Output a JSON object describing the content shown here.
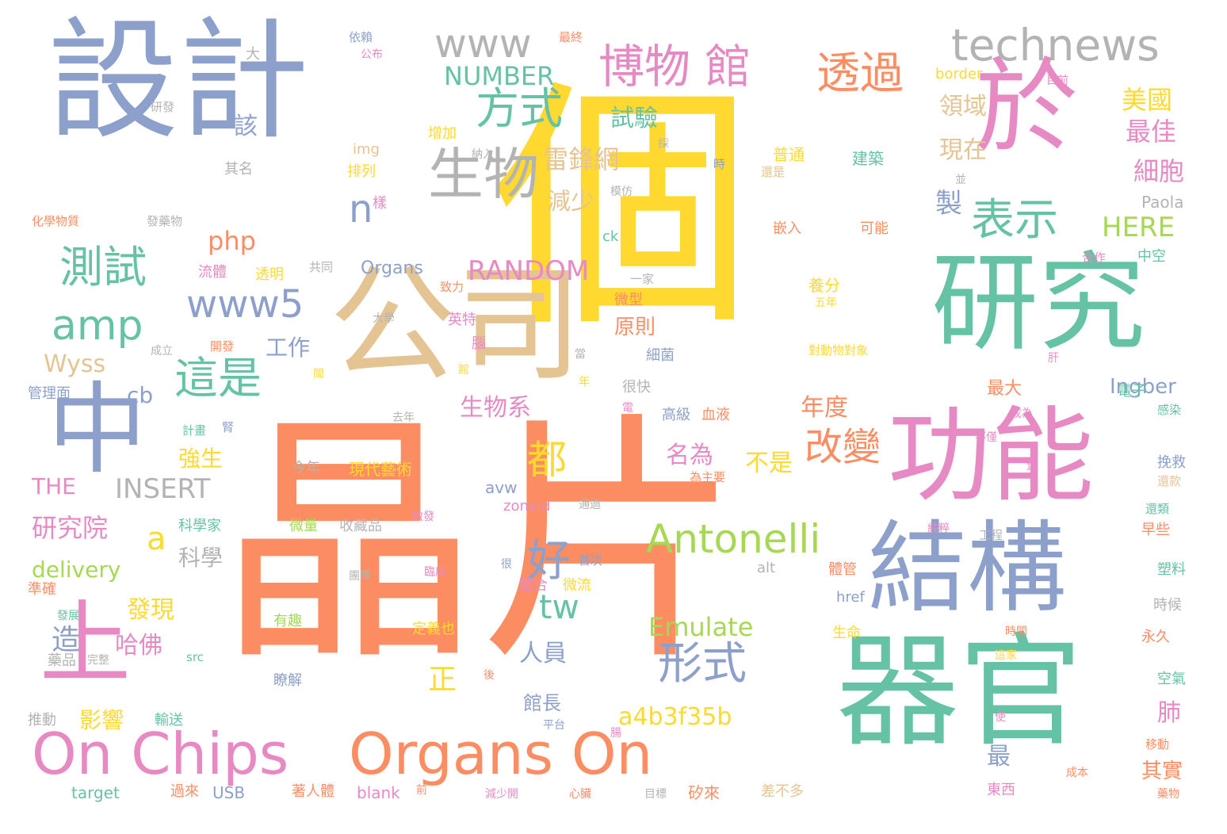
{
  "palette": {
    "blue": "#8DA0CB",
    "orange": "#FC8D62",
    "green": "#66C2A5",
    "yellow": "#FFD92F",
    "pink": "#E78AC3",
    "lime": "#A6D854",
    "tan": "#E5C494",
    "gray": "#B3B3B3"
  },
  "words": [
    {
      "text": "晶片",
      "color": "orange",
      "weight": 1.0
    },
    {
      "text": "個",
      "color": "yellow",
      "weight": 0.95
    },
    {
      "text": "設計",
      "color": "blue",
      "weight": 0.8
    },
    {
      "text": "公司",
      "color": "tan",
      "weight": 0.6
    },
    {
      "text": "器官",
      "color": "green",
      "weight": 0.6
    },
    {
      "text": "研究",
      "color": "green",
      "weight": 0.55
    },
    {
      "text": "功能",
      "color": "pink",
      "weight": 0.55
    },
    {
      "text": "於",
      "color": "pink",
      "weight": 0.5
    },
    {
      "text": "結構",
      "color": "blue",
      "weight": 0.5
    },
    {
      "text": "中",
      "color": "blue",
      "weight": 0.5
    },
    {
      "text": "上",
      "color": "pink",
      "weight": 0.45
    },
    {
      "text": "On Chips",
      "color": "pink",
      "weight": 0.4
    },
    {
      "text": "Organs On",
      "color": "orange",
      "weight": 0.4
    },
    {
      "text": "生物",
      "color": "gray",
      "weight": 0.3
    },
    {
      "text": "博物 館",
      "color": "pink",
      "weight": 0.3
    },
    {
      "text": "透過",
      "color": "orange",
      "weight": 0.3
    },
    {
      "text": "technews",
      "color": "gray",
      "weight": 0.3
    },
    {
      "text": "www",
      "color": "gray",
      "weight": 0.28
    },
    {
      "text": "方式",
      "color": "green",
      "weight": 0.28
    },
    {
      "text": "表示",
      "color": "green",
      "weight": 0.28
    },
    {
      "text": "測試",
      "color": "green",
      "weight": 0.28
    },
    {
      "text": "amp",
      "color": "green",
      "weight": 0.26
    },
    {
      "text": "www5",
      "color": "blue",
      "weight": 0.24
    },
    {
      "text": "這是",
      "color": "green",
      "weight": 0.26
    },
    {
      "text": "Antonelli",
      "color": "lime",
      "weight": 0.26
    },
    {
      "text": "形式",
      "color": "blue",
      "weight": 0.26
    },
    {
      "text": "好",
      "color": "blue",
      "weight": 0.26
    },
    {
      "text": "都",
      "color": "yellow",
      "weight": 0.24
    },
    {
      "text": "改變",
      "color": "orange",
      "weight": 0.22
    },
    {
      "text": "tw",
      "color": "green",
      "weight": 0.2
    },
    {
      "text": "a",
      "color": "yellow",
      "weight": 0.2
    },
    {
      "text": "雷鋒網",
      "color": "tan",
      "weight": 0.16
    },
    {
      "text": "減少",
      "color": "tan",
      "weight": 0.16
    },
    {
      "text": "試驗",
      "color": "green",
      "weight": 0.16
    },
    {
      "text": "NUMBER",
      "color": "green",
      "weight": 0.16
    },
    {
      "text": "RANDOM",
      "color": "pink",
      "weight": 0.18
    },
    {
      "text": "Emulate",
      "color": "lime",
      "weight": 0.18
    },
    {
      "text": "a4b3f35b",
      "color": "yellow",
      "weight": 0.18
    },
    {
      "text": "INSERT",
      "color": "gray",
      "weight": 0.18
    },
    {
      "text": "研究院",
      "color": "pink",
      "weight": 0.16
    },
    {
      "text": "科學",
      "color": "gray",
      "weight": 0.16
    },
    {
      "text": "delivery",
      "color": "lime",
      "weight": 0.16
    },
    {
      "text": "Wyss",
      "color": "tan",
      "weight": 0.16
    },
    {
      "text": "發現",
      "color": "yellow",
      "weight": 0.16
    },
    {
      "text": "哈佛",
      "color": "pink",
      "weight": 0.16
    },
    {
      "text": "人員",
      "color": "blue",
      "weight": 0.16
    },
    {
      "text": "名為",
      "color": "pink",
      "weight": 0.16
    },
    {
      "text": "不是",
      "color": "yellow",
      "weight": 0.16
    },
    {
      "text": "生物系",
      "color": "pink",
      "weight": 0.16
    },
    {
      "text": "工作",
      "color": "blue",
      "weight": 0.14
    },
    {
      "text": "強生",
      "color": "yellow",
      "weight": 0.14
    },
    {
      "text": "年度",
      "color": "orange",
      "weight": 0.16
    },
    {
      "text": "領域",
      "color": "tan",
      "weight": 0.14
    },
    {
      "text": "現在",
      "color": "tan",
      "weight": 0.14
    },
    {
      "text": "美國",
      "color": "yellow",
      "weight": 0.14
    },
    {
      "text": "最佳",
      "color": "pink",
      "weight": 0.14
    },
    {
      "text": "細胞",
      "color": "pink",
      "weight": 0.14
    },
    {
      "text": "HERE",
      "color": "lime",
      "weight": 0.14
    },
    {
      "text": "php",
      "color": "orange",
      "weight": 0.14
    },
    {
      "text": "cb",
      "color": "blue",
      "weight": 0.14
    },
    {
      "text": "THE",
      "color": "pink",
      "weight": 0.14
    },
    {
      "text": "Ingber",
      "color": "blue",
      "weight": 0.12
    },
    {
      "text": "原則",
      "color": "orange",
      "weight": 0.12
    },
    {
      "text": "造",
      "color": "blue",
      "weight": 0.14
    },
    {
      "text": "影響",
      "color": "yellow",
      "weight": 0.12
    },
    {
      "text": "館長",
      "color": "blue",
      "weight": 0.12
    },
    {
      "text": "正",
      "color": "yellow",
      "weight": 0.14
    },
    {
      "text": "肺",
      "color": "pink",
      "weight": 0.14
    },
    {
      "text": "最",
      "color": "blue",
      "weight": 0.14
    },
    {
      "text": "其實",
      "color": "orange",
      "weight": 0.12
    },
    {
      "text": "最大",
      "color": "orange",
      "weight": 0.12
    },
    {
      "text": "製",
      "color": "blue",
      "weight": 0.14
    },
    {
      "text": "該",
      "color": "blue",
      "weight": 0.12
    },
    {
      "text": "n",
      "color": "blue",
      "weight": 0.14
    },
    {
      "text": "img",
      "color": "tan",
      "weight": 0.08
    },
    {
      "text": "樣",
      "color": "pink",
      "weight": 0.08
    },
    {
      "text": "排列",
      "color": "yellow",
      "weight": 0.08
    },
    {
      "text": "增加",
      "color": "yellow",
      "weight": 0.08
    },
    {
      "text": "其名",
      "color": "gray",
      "weight": 0.08
    },
    {
      "text": "大",
      "color": "gray",
      "weight": 0.08
    },
    {
      "text": "研發",
      "color": "gray",
      "weight": 0.06
    },
    {
      "text": "依賴",
      "color": "blue",
      "weight": 0.06
    },
    {
      "text": "公布",
      "color": "pink",
      "weight": 0.06
    },
    {
      "text": "最終",
      "color": "orange",
      "weight": 0.06
    },
    {
      "text": "border",
      "color": "yellow",
      "weight": 0.08
    },
    {
      "text": "目前",
      "color": "pink",
      "weight": 0.06
    },
    {
      "text": "採",
      "color": "gray",
      "weight": 0.06
    },
    {
      "text": "納入",
      "color": "gray",
      "weight": 0.06
    },
    {
      "text": "普通",
      "color": "yellow",
      "weight": 0.08
    },
    {
      "text": "建築",
      "color": "green",
      "weight": 0.08
    },
    {
      "text": "還是",
      "color": "tan",
      "weight": 0.06
    },
    {
      "text": "時",
      "color": "blue",
      "weight": 0.06
    },
    {
      "text": "模仿",
      "color": "gray",
      "weight": 0.06
    },
    {
      "text": "並",
      "color": "gray",
      "weight": 0.06
    },
    {
      "text": "Paola",
      "color": "gray",
      "weight": 0.08
    },
    {
      "text": "嵌入",
      "color": "orange",
      "weight": 0.08
    },
    {
      "text": "可能",
      "color": "orange",
      "weight": 0.08
    },
    {
      "text": "化學物質",
      "color": "orange",
      "weight": 0.06
    },
    {
      "text": "發藥物",
      "color": "gray",
      "weight": 0.06
    },
    {
      "text": "ck",
      "color": "green",
      "weight": 0.08
    },
    {
      "text": "合作",
      "color": "pink",
      "weight": 0.06
    },
    {
      "text": "中空",
      "color": "green",
      "weight": 0.08
    },
    {
      "text": "流體",
      "color": "pink",
      "weight": 0.08
    },
    {
      "text": "透明",
      "color": "yellow",
      "weight": 0.08
    },
    {
      "text": "共同",
      "color": "gray",
      "weight": 0.06
    },
    {
      "text": "Organs",
      "color": "blue",
      "weight": 0.08
    },
    {
      "text": "致力",
      "color": "orange",
      "weight": 0.06
    },
    {
      "text": "一家",
      "color": "gray",
      "weight": 0.06
    },
    {
      "text": "養分",
      "color": "yellow",
      "weight": 0.08
    },
    {
      "text": "五年",
      "color": "yellow",
      "weight": 0.06
    },
    {
      "text": "英特",
      "color": "pink",
      "weight": 0.08
    },
    {
      "text": "微型",
      "color": "orange",
      "weight": 0.08
    },
    {
      "text": "大學",
      "color": "gray",
      "weight": 0.06
    },
    {
      "text": "成立",
      "color": "gray",
      "weight": 0.06
    },
    {
      "text": "開發",
      "color": "orange",
      "weight": 0.06
    },
    {
      "text": "腦",
      "color": "pink",
      "weight": 0.08
    },
    {
      "text": "當",
      "color": "gray",
      "weight": 0.06
    },
    {
      "text": "細菌",
      "color": "blue",
      "weight": 0.08
    },
    {
      "text": "對動物對象",
      "color": "yellow",
      "weight": 0.06
    },
    {
      "text": "肝",
      "color": "pink",
      "weight": 0.06
    },
    {
      "text": "電子",
      "color": "green",
      "weight": 0.08
    },
    {
      "text": "館",
      "color": "yellow",
      "weight": 0.06
    },
    {
      "text": "閩",
      "color": "yellow",
      "weight": 0.06
    },
    {
      "text": "年",
      "color": "yellow",
      "weight": 0.06
    },
    {
      "text": "管理面",
      "color": "blue",
      "weight": 0.06
    },
    {
      "text": "去年",
      "color": "gray",
      "weight": 0.06
    },
    {
      "text": "很快",
      "color": "gray",
      "weight": 0.08
    },
    {
      "text": "高級",
      "color": "blue",
      "weight": 0.08
    },
    {
      "text": "血液",
      "color": "orange",
      "weight": 0.08
    },
    {
      "text": "成為",
      "color": "pink",
      "weight": 0.06
    },
    {
      "text": "感染",
      "color": "green",
      "weight": 0.06
    },
    {
      "text": "計畫",
      "color": "green",
      "weight": 0.06
    },
    {
      "text": "腎",
      "color": "blue",
      "weight": 0.06
    },
    {
      "text": "電",
      "color": "pink",
      "weight": 0.06
    },
    {
      "text": "不僅",
      "color": "pink",
      "weight": 0.06
    },
    {
      "text": "今年",
      "color": "gray",
      "weight": 0.08
    },
    {
      "text": "現代藝術",
      "color": "yellow",
      "weight": 0.08
    },
    {
      "text": "挽救",
      "color": "blue",
      "weight": 0.08
    },
    {
      "text": "為主要",
      "color": "orange",
      "weight": 0.06
    },
    {
      "text": "還款",
      "color": "tan",
      "weight": 0.06
    },
    {
      "text": "還",
      "color": "pink",
      "weight": 0.06
    },
    {
      "text": "avw",
      "color": "blue",
      "weight": 0.08
    },
    {
      "text": "zoneid",
      "color": "pink",
      "weight": 0.08
    },
    {
      "text": "通過",
      "color": "gray",
      "weight": 0.06
    },
    {
      "text": "還類",
      "color": "green",
      "weight": 0.06
    },
    {
      "text": "科學家",
      "color": "green",
      "weight": 0.08
    },
    {
      "text": "微量",
      "color": "lime",
      "weight": 0.08
    },
    {
      "text": "收藏品",
      "color": "gray",
      "weight": 0.08
    },
    {
      "text": "啟發",
      "color": "pink",
      "weight": 0.06
    },
    {
      "text": "純粹",
      "color": "pink",
      "weight": 0.06
    },
    {
      "text": "工程",
      "color": "gray",
      "weight": 0.06
    },
    {
      "text": "早些",
      "color": "orange",
      "weight": 0.06
    },
    {
      "text": "首次",
      "color": "blue",
      "weight": 0.06
    },
    {
      "text": "alt",
      "color": "gray",
      "weight": 0.08
    },
    {
      "text": "很",
      "color": "blue",
      "weight": 0.06
    },
    {
      "text": "團隊",
      "color": "gray",
      "weight": 0.06
    },
    {
      "text": "臨床",
      "color": "pink",
      "weight": 0.06
    },
    {
      "text": "體管",
      "color": "orange",
      "weight": 0.08
    },
    {
      "text": "塑料",
      "color": "green",
      "weight": 0.08
    },
    {
      "text": "準確",
      "color": "orange",
      "weight": 0.08
    },
    {
      "text": "整合",
      "color": "pink",
      "weight": 0.08
    },
    {
      "text": "微流",
      "color": "yellow",
      "weight": 0.08
    },
    {
      "text": "href",
      "color": "blue",
      "weight": 0.08
    },
    {
      "text": "時候",
      "color": "gray",
      "weight": 0.08
    },
    {
      "text": "發展",
      "color": "green",
      "weight": 0.06
    },
    {
      "text": "有趣",
      "color": "lime",
      "weight": 0.08
    },
    {
      "text": "定義也",
      "color": "yellow",
      "weight": 0.08
    },
    {
      "text": "生命",
      "color": "yellow",
      "weight": 0.08
    },
    {
      "text": "時間",
      "color": "orange",
      "weight": 0.06
    },
    {
      "text": "永久",
      "color": "orange",
      "weight": 0.08
    },
    {
      "text": "src",
      "color": "green",
      "weight": 0.08
    },
    {
      "text": "藥品",
      "color": "gray",
      "weight": 0.08
    },
    {
      "text": "完整",
      "color": "gray",
      "weight": 0.06
    },
    {
      "text": "這家",
      "color": "yellow",
      "weight": 0.06
    },
    {
      "text": "瞭解",
      "color": "blue",
      "weight": 0.08
    },
    {
      "text": "後",
      "color": "orange",
      "weight": 0.06
    },
    {
      "text": "空氣",
      "color": "green",
      "weight": 0.08
    },
    {
      "text": "推動",
      "color": "gray",
      "weight": 0.08
    },
    {
      "text": "輸送",
      "color": "green",
      "weight": 0.08
    },
    {
      "text": "平台",
      "color": "blue",
      "weight": 0.06
    },
    {
      "text": "使",
      "color": "pink",
      "weight": 0.06
    },
    {
      "text": "腸",
      "color": "pink",
      "weight": 0.06
    },
    {
      "text": "移動",
      "color": "orange",
      "weight": 0.06
    },
    {
      "text": "target",
      "color": "green",
      "weight": 0.08
    },
    {
      "text": "過來",
      "color": "orange",
      "weight": 0.08
    },
    {
      "text": "USB",
      "color": "blue",
      "weight": 0.08
    },
    {
      "text": "著人體",
      "color": "orange",
      "weight": 0.08
    },
    {
      "text": "blank",
      "color": "pink",
      "weight": 0.08
    },
    {
      "text": "前",
      "color": "orange",
      "weight": 0.06
    },
    {
      "text": "減少開",
      "color": "pink",
      "weight": 0.06
    },
    {
      "text": "心臟",
      "color": "orange",
      "weight": 0.06
    },
    {
      "text": "目標",
      "color": "gray",
      "weight": 0.06
    },
    {
      "text": "矽來",
      "color": "orange",
      "weight": 0.08
    },
    {
      "text": "差不多",
      "color": "tan",
      "weight": 0.08
    },
    {
      "text": "東西",
      "color": "pink",
      "weight": 0.08
    },
    {
      "text": "成本",
      "color": "orange",
      "weight": 0.06
    },
    {
      "text": "藥物",
      "color": "orange",
      "weight": 0.06
    }
  ]
}
